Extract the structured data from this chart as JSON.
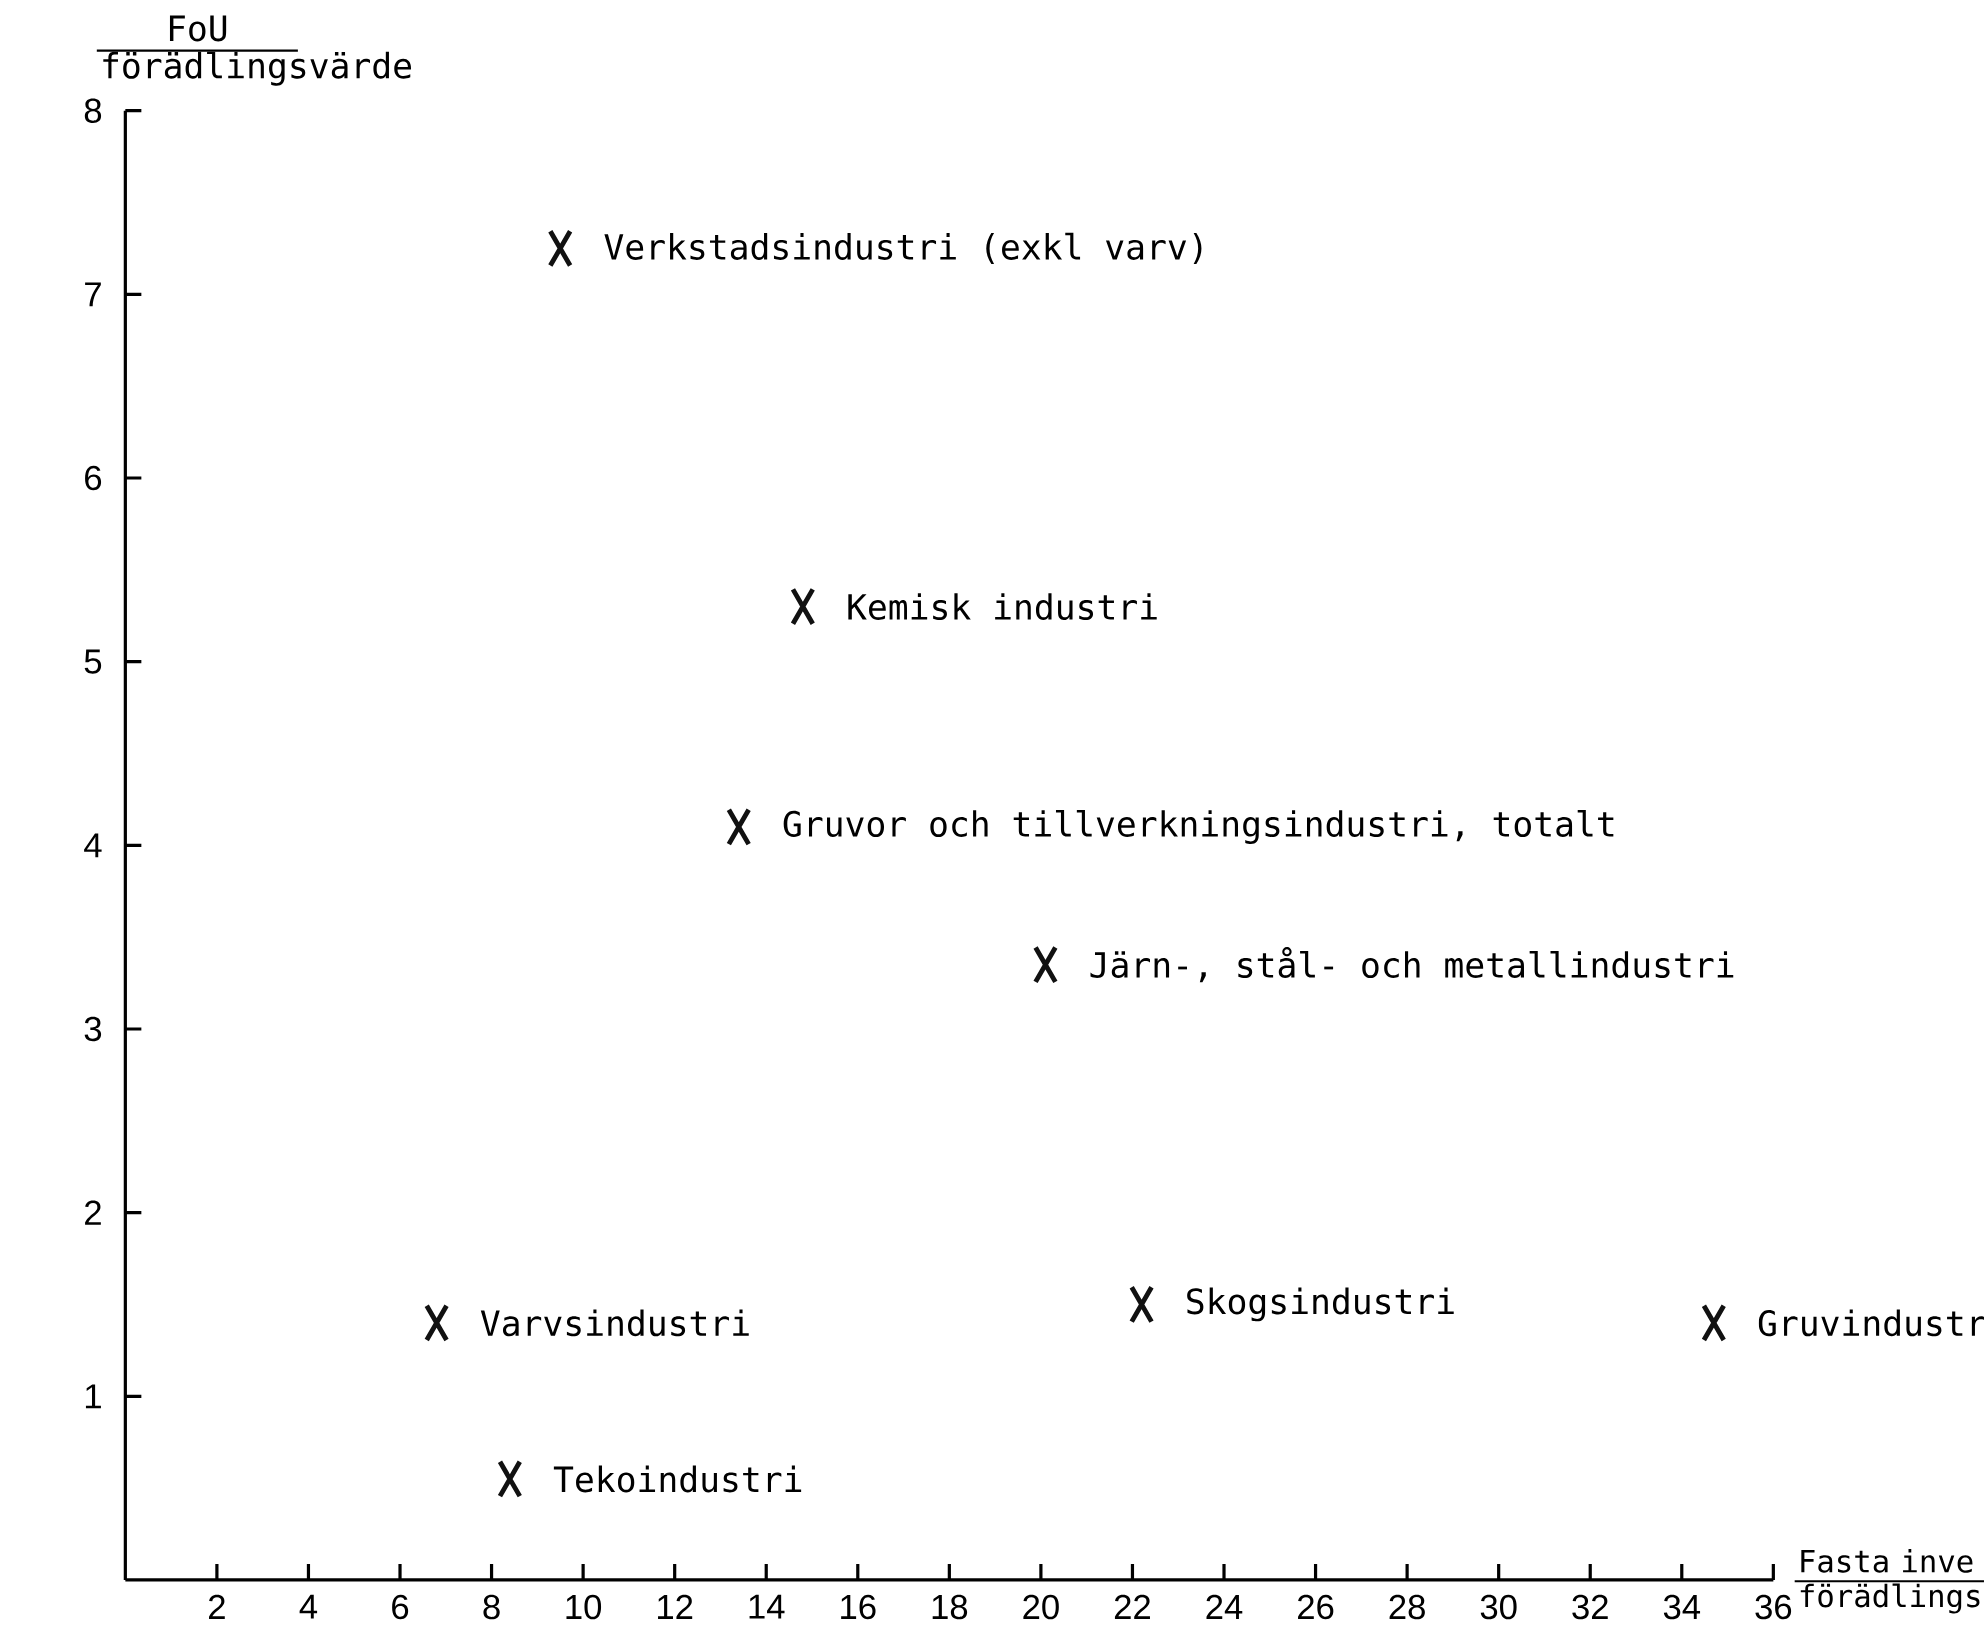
{
  "chart_data": {
    "type": "scatter",
    "xlabel": "Fasta inve förädlings",
    "ylabel": "FoU förädlingsvärde",
    "x": [
      9.5,
      14.8,
      13.4,
      20.1,
      22.2,
      6.8,
      8.4,
      34.7
    ],
    "values": [
      7.25,
      5.3,
      4.1,
      3.35,
      1.5,
      1.4,
      0.55,
      1.4
    ],
    "color": "#111111",
    "marker": "cross",
    "xlim": [
      0,
      36
    ],
    "ylim": [
      0,
      8
    ],
    "xticks": [
      2,
      4,
      6,
      8,
      10,
      12,
      14,
      16,
      18,
      20,
      22,
      24,
      26,
      28,
      30,
      32,
      34,
      36
    ],
    "yticks": [
      1,
      2,
      3,
      4,
      5,
      6,
      7,
      8
    ],
    "grid": false,
    "annotations": [
      {
        "text": "Verkstadsindustri (exkl varv)",
        "x": 9.5,
        "y": 7.25
      },
      {
        "text": "Kemisk industri",
        "x": 14.8,
        "y": 5.3
      },
      {
        "text": "Gruvor och tillverkningsindustri, totalt",
        "x": 13.4,
        "y": 4.1
      },
      {
        "text": "Järn-, stål- och metallindustri",
        "x": 20.1,
        "y": 3.35
      },
      {
        "text": "Skogsindustri",
        "x": 22.2,
        "y": 1.5
      },
      {
        "text": "Varvsindustri",
        "x": 6.8,
        "y": 1.4
      },
      {
        "text": "Tekoindustri",
        "x": 8.4,
        "y": 0.55
      },
      {
        "text": "Gruvindustr",
        "x": 34.7,
        "y": 1.4
      }
    ]
  }
}
